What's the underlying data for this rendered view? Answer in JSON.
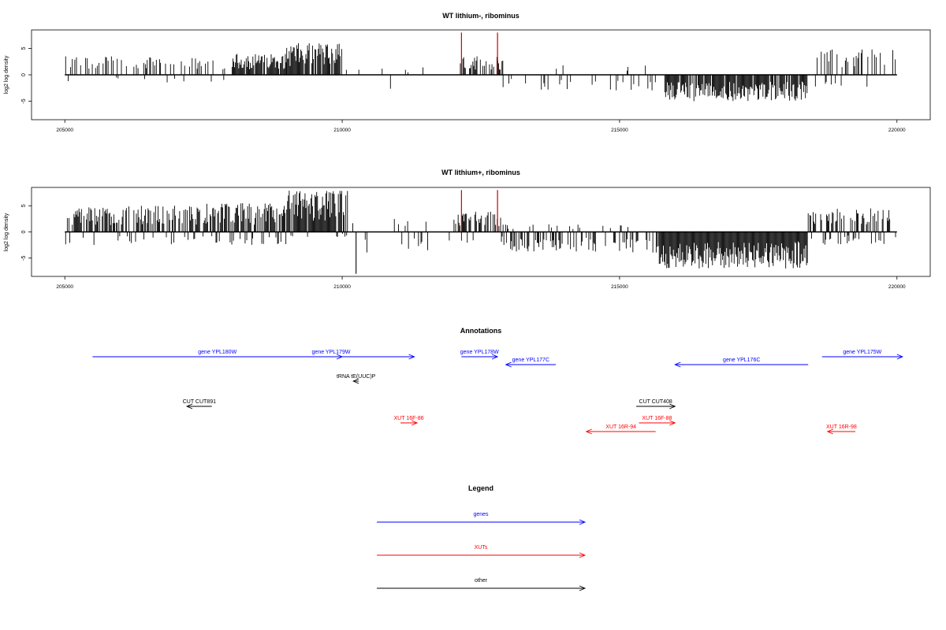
{
  "colors": {
    "gene": "#0000ff",
    "xut": "#ff0000",
    "other": "#000000",
    "peak": "#cc0000",
    "bar": "#000000"
  },
  "chart_data": [
    {
      "type": "bar",
      "title": "WT lithium-, ribominus",
      "ylabel": "log2 log density",
      "xlim": [
        204400,
        220600
      ],
      "ylim": [
        -8.5,
        8.5
      ],
      "xticks": [
        205000,
        210000,
        215000,
        220000
      ],
      "yticks": [
        5,
        0,
        -5
      ],
      "xtick_labels": [
        "205000",
        "210000",
        "215000",
        "220000"
      ],
      "ytick_labels": [
        "5",
        "0",
        "-5"
      ],
      "baseline": [
        205000,
        220000
      ],
      "highlight_peaks": [
        {
          "x": 212150,
          "value": 8
        },
        {
          "x": 212800,
          "value": 8
        }
      ],
      "regions": [
        {
          "from": 205000,
          "to": 208000,
          "density": 0.35,
          "min": -1.5,
          "max": 3.5,
          "bias": 0.85
        },
        {
          "from": 208000,
          "to": 209000,
          "density": 0.9,
          "min": 0.5,
          "max": 4,
          "bias": 1.0
        },
        {
          "from": 209000,
          "to": 210000,
          "density": 0.9,
          "min": 1,
          "max": 6,
          "bias": 1.0
        },
        {
          "from": 210000,
          "to": 212100,
          "density": 0.03,
          "min": -4,
          "max": 1.5,
          "bias": 0.4
        },
        {
          "from": 212100,
          "to": 212900,
          "density": 0.6,
          "min": 1,
          "max": 3.5,
          "bias": 0.95
        },
        {
          "from": 212900,
          "to": 215700,
          "density": 0.12,
          "min": -3,
          "max": 2.5,
          "bias": 0.2
        },
        {
          "from": 215800,
          "to": 218400,
          "density": 0.9,
          "min": -5,
          "max": -0.5,
          "bias": 0.0
        },
        {
          "from": 218500,
          "to": 220000,
          "density": 0.3,
          "min": -2.5,
          "max": 5,
          "bias": 0.85
        }
      ]
    },
    {
      "type": "bar",
      "title": "WT lithium+, ribominus",
      "ylabel": "log2 log density",
      "xlim": [
        204400,
        220600
      ],
      "ylim": [
        -8.5,
        8.5
      ],
      "xticks": [
        205000,
        210000,
        215000,
        220000
      ],
      "yticks": [
        5,
        0,
        -5
      ],
      "xtick_labels": [
        "205000",
        "210000",
        "215000",
        "220000"
      ],
      "ytick_labels": [
        "5",
        "0",
        "-5"
      ],
      "baseline": [
        205000,
        220000
      ],
      "highlight_peaks": [
        {
          "x": 212150,
          "value": 8
        },
        {
          "x": 212800,
          "value": 8
        }
      ],
      "regions": [
        {
          "from": 205000,
          "to": 207500,
          "density": 0.75,
          "min": -2.5,
          "max": 5,
          "bias": 0.8
        },
        {
          "from": 207500,
          "to": 209000,
          "density": 0.95,
          "min": -2.5,
          "max": 5.5,
          "bias": 0.85
        },
        {
          "from": 209000,
          "to": 210100,
          "density": 1.0,
          "min": -1,
          "max": 8,
          "bias": 0.95
        },
        {
          "from": 210100,
          "to": 212000,
          "density": 0.12,
          "min": -4,
          "max": 2.5,
          "bias": 0.5
        },
        {
          "from": 212000,
          "to": 212900,
          "density": 0.6,
          "min": -3,
          "max": 4,
          "bias": 0.85
        },
        {
          "from": 212900,
          "to": 215700,
          "density": 0.45,
          "min": -4,
          "max": 1.5,
          "bias": 0.2
        },
        {
          "from": 215700,
          "to": 218400,
          "density": 1.0,
          "min": -7,
          "max": -0.5,
          "bias": 0.0
        },
        {
          "from": 218400,
          "to": 220000,
          "density": 0.65,
          "min": -2.5,
          "max": 4.5,
          "bias": 0.7
        }
      ],
      "special_bars": [
        {
          "x": 210250,
          "value": -8
        }
      ]
    }
  ],
  "annotations": {
    "title": "Annotations",
    "features": [
      {
        "label": "gene YPL180W",
        "start": 205500,
        "end": 210000,
        "kind": "gene",
        "strand": "+",
        "row": 0
      },
      {
        "label": "gene YPL179W",
        "start": 208300,
        "end": 211300,
        "kind": "gene",
        "strand": "+",
        "row": 0
      },
      {
        "label": "gene YPL178W",
        "start": 212150,
        "end": 212800,
        "kind": "gene",
        "strand": "+",
        "row": 0
      },
      {
        "label": "gene YPL177C",
        "start": 212950,
        "end": 213850,
        "kind": "gene",
        "strand": "-",
        "row": 1
      },
      {
        "label": "gene YPL176C",
        "start": 216000,
        "end": 218400,
        "kind": "gene",
        "strand": "-",
        "row": 1
      },
      {
        "label": "gene YPL175W",
        "start": 218650,
        "end": 220100,
        "kind": "gene",
        "strand": "+",
        "row": 0
      },
      {
        "label": "tRNA tE(UUC)P",
        "start": 210200,
        "end": 210300,
        "kind": "other",
        "strand": "-",
        "row": 2
      },
      {
        "label": "CUT CUT891",
        "start": 207200,
        "end": 207650,
        "kind": "other",
        "strand": "-",
        "row": 3
      },
      {
        "label": "CUT CUT408",
        "start": 215300,
        "end": 216000,
        "kind": "other",
        "strand": "+",
        "row": 3
      },
      {
        "label": "XUT 16F-86",
        "start": 211050,
        "end": 211350,
        "kind": "xut",
        "strand": "+",
        "row": 4
      },
      {
        "label": "XUT 16F-88",
        "start": 215350,
        "end": 216000,
        "kind": "xut",
        "strand": "+",
        "row": 4
      },
      {
        "label": "XUT 16R-94",
        "start": 214400,
        "end": 215650,
        "kind": "xut",
        "strand": "-",
        "row": 5
      },
      {
        "label": "XUT 16R-98",
        "start": 218750,
        "end": 219250,
        "kind": "xut",
        "strand": "-",
        "row": 5
      }
    ]
  },
  "legend": {
    "title": "Legend",
    "entries": [
      {
        "label": "genes",
        "kind": "gene"
      },
      {
        "label": "XUTs",
        "kind": "xut"
      },
      {
        "label": "other",
        "kind": "other"
      }
    ]
  }
}
